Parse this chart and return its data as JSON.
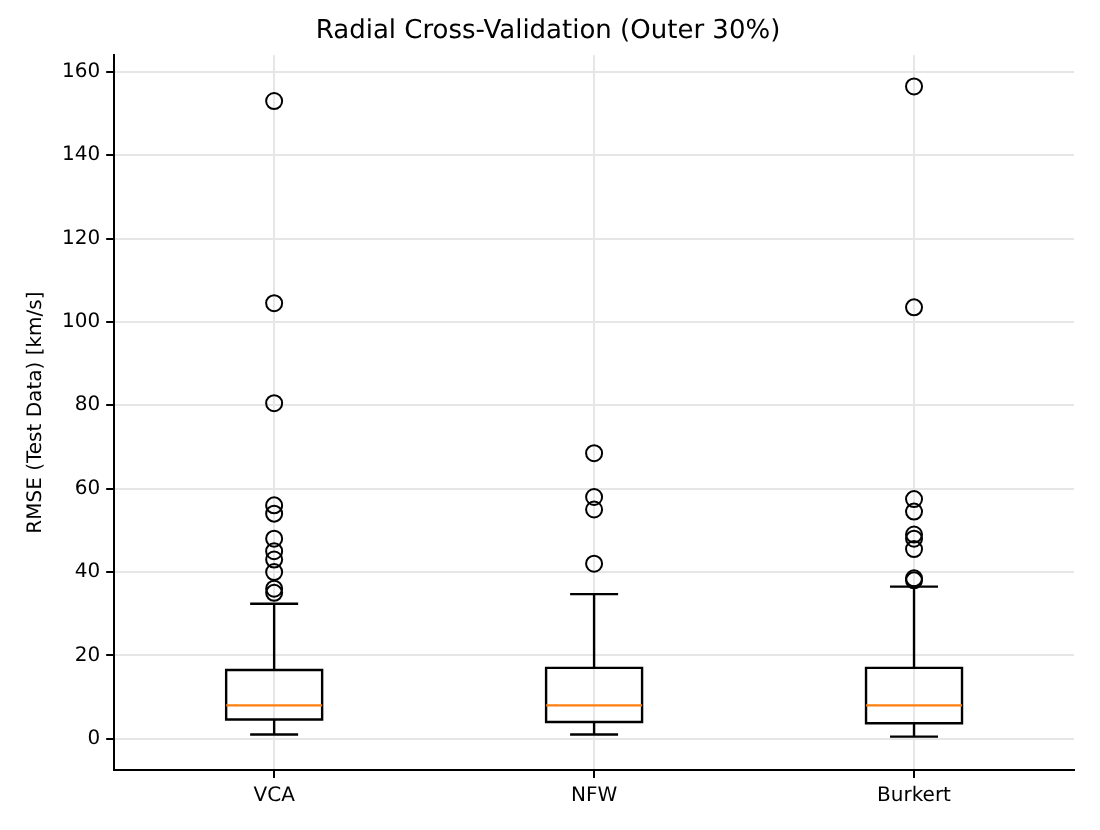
{
  "chart_data": {
    "type": "box",
    "title": "Radial Cross-Validation (Outer 30%)",
    "ylabel": "RMSE (Test Data) [km/s]",
    "categories": [
      "VCA",
      "NFW",
      "Burkert"
    ],
    "boxes": [
      {
        "low": 1,
        "q1": 4.6,
        "median": 8,
        "q3": 16.5,
        "high": 32.4,
        "outliers": [
          153,
          104.5,
          80.5,
          56,
          54,
          48,
          45,
          43,
          40,
          36,
          35
        ]
      },
      {
        "low": 1,
        "q1": 4,
        "median": 8,
        "q3": 17,
        "high": 34.7,
        "outliers": [
          68.5,
          58,
          55,
          42
        ]
      },
      {
        "low": 0.5,
        "q1": 3.7,
        "median": 8,
        "q3": 17,
        "high": 36.5,
        "outliers": [
          156.5,
          103.5,
          57.5,
          54.5,
          49,
          48,
          45.5,
          38.5,
          38
        ]
      }
    ],
    "ylim": [
      -7.5,
      164
    ],
    "yticks": [
      0,
      20,
      40,
      60,
      80,
      100,
      120,
      140,
      160
    ],
    "grid": true,
    "marker": "circle"
  }
}
